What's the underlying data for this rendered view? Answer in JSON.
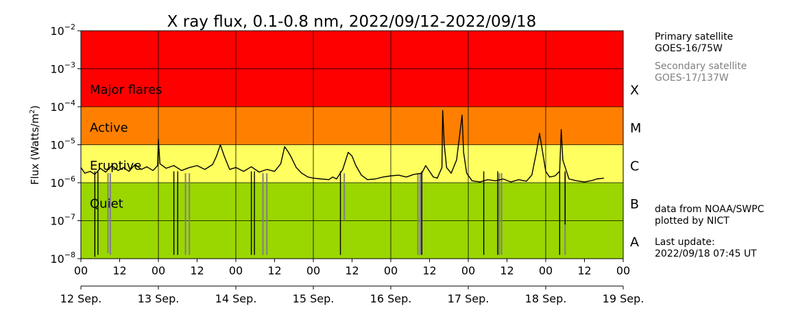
{
  "chart_data": {
    "type": "line",
    "title": "X ray flux, 0.1-0.8 nm, 2022/09/12-2022/09/18",
    "ylabel": "Flux (Watts/m²)",
    "ylabel_main": "Flux (Watts/m",
    "ylabel_sup": "2",
    "ylabel_end": ")",
    "yscale": "log",
    "xlim_days": [
      0,
      7
    ],
    "ylim_exp": [
      -8,
      -2
    ],
    "y_ticks": [
      {
        "exp": -2,
        "base": "10",
        "sup": "−2"
      },
      {
        "exp": -3,
        "base": "10",
        "sup": "−3"
      },
      {
        "exp": -4,
        "base": "10",
        "sup": "−4"
      },
      {
        "exp": -5,
        "base": "10",
        "sup": "−5"
      },
      {
        "exp": -6,
        "base": "10",
        "sup": "−6"
      },
      {
        "exp": -7,
        "base": "10",
        "sup": "−7"
      },
      {
        "exp": -8,
        "base": "10",
        "sup": "−8"
      }
    ],
    "x_hour_ticks": [
      "00",
      "12",
      "00",
      "12",
      "00",
      "12",
      "00",
      "12",
      "00",
      "12",
      "00",
      "12",
      "00",
      "12",
      "00"
    ],
    "x_day_ticks": [
      "12 Sep.",
      "13 Sep.",
      "14 Sep.",
      "15 Sep.",
      "16 Sep.",
      "17 Sep.",
      "18 Sep.",
      "19 Sep."
    ],
    "bands": [
      {
        "from_exp": -4,
        "to_exp": -2,
        "color": "#ff0000",
        "label": "Major flares",
        "class": "X"
      },
      {
        "from_exp": -5,
        "to_exp": -4,
        "color": "#ff8000",
        "label": "Active",
        "class": "M"
      },
      {
        "from_exp": -6,
        "to_exp": -5,
        "color": "#ffff60",
        "label": "Eruptive",
        "class": "C"
      },
      {
        "from_exp": -8,
        "to_exp": -6,
        "color": "#9ad600",
        "label": "Quiet",
        "class": "B"
      }
    ],
    "class_labels": [
      "X",
      "M",
      "C",
      "B",
      "A"
    ],
    "grid": true,
    "series": [
      {
        "name": "GOES-16/75W",
        "color": "#000000",
        "points": [
          [
            0.0,
            -5.6
          ],
          [
            0.05,
            -5.75
          ],
          [
            0.12,
            -5.7
          ],
          [
            0.18,
            -5.78
          ],
          [
            0.25,
            -5.62
          ],
          [
            0.32,
            -5.72
          ],
          [
            0.4,
            -5.55
          ],
          [
            0.48,
            -5.68
          ],
          [
            0.55,
            -5.6
          ],
          [
            0.62,
            -5.7
          ],
          [
            0.7,
            -5.52
          ],
          [
            0.78,
            -5.65
          ],
          [
            0.85,
            -5.58
          ],
          [
            0.93,
            -5.68
          ],
          [
            0.99,
            -5.55
          ],
          [
            1.0,
            -4.85
          ],
          [
            1.02,
            -5.5
          ],
          [
            1.1,
            -5.62
          ],
          [
            1.2,
            -5.55
          ],
          [
            1.3,
            -5.68
          ],
          [
            1.4,
            -5.6
          ],
          [
            1.5,
            -5.55
          ],
          [
            1.6,
            -5.65
          ],
          [
            1.7,
            -5.52
          ],
          [
            1.75,
            -5.3
          ],
          [
            1.8,
            -5.0
          ],
          [
            1.85,
            -5.3
          ],
          [
            1.92,
            -5.65
          ],
          [
            2.0,
            -5.6
          ],
          [
            2.1,
            -5.7
          ],
          [
            2.2,
            -5.58
          ],
          [
            2.3,
            -5.72
          ],
          [
            2.4,
            -5.65
          ],
          [
            2.5,
            -5.7
          ],
          [
            2.58,
            -5.5
          ],
          [
            2.63,
            -5.05
          ],
          [
            2.68,
            -5.2
          ],
          [
            2.72,
            -5.35
          ],
          [
            2.78,
            -5.6
          ],
          [
            2.85,
            -5.75
          ],
          [
            2.93,
            -5.85
          ],
          [
            3.0,
            -5.88
          ],
          [
            3.1,
            -5.9
          ],
          [
            3.2,
            -5.92
          ],
          [
            3.25,
            -5.85
          ],
          [
            3.3,
            -5.9
          ],
          [
            3.38,
            -5.65
          ],
          [
            3.45,
            -5.2
          ],
          [
            3.5,
            -5.3
          ],
          [
            3.55,
            -5.55
          ],
          [
            3.62,
            -5.8
          ],
          [
            3.7,
            -5.92
          ],
          [
            3.8,
            -5.9
          ],
          [
            3.9,
            -5.85
          ],
          [
            4.0,
            -5.82
          ],
          [
            4.1,
            -5.8
          ],
          [
            4.2,
            -5.85
          ],
          [
            4.3,
            -5.78
          ],
          [
            4.4,
            -5.75
          ],
          [
            4.45,
            -5.55
          ],
          [
            4.5,
            -5.7
          ],
          [
            4.55,
            -5.85
          ],
          [
            4.6,
            -5.88
          ],
          [
            4.66,
            -5.6
          ],
          [
            4.67,
            -4.1
          ],
          [
            4.69,
            -5.0
          ],
          [
            4.72,
            -5.6
          ],
          [
            4.78,
            -5.75
          ],
          [
            4.85,
            -5.4
          ],
          [
            4.92,
            -4.22
          ],
          [
            4.94,
            -5.2
          ],
          [
            4.98,
            -5.75
          ],
          [
            5.05,
            -5.95
          ],
          [
            5.15,
            -5.98
          ],
          [
            5.25,
            -5.92
          ],
          [
            5.35,
            -5.95
          ],
          [
            5.45,
            -5.9
          ],
          [
            5.55,
            -5.98
          ],
          [
            5.65,
            -5.92
          ],
          [
            5.75,
            -5.96
          ],
          [
            5.82,
            -5.8
          ],
          [
            5.88,
            -5.2
          ],
          [
            5.92,
            -4.7
          ],
          [
            5.96,
            -5.2
          ],
          [
            6.0,
            -5.7
          ],
          [
            6.05,
            -5.85
          ],
          [
            6.12,
            -5.82
          ],
          [
            6.18,
            -5.7
          ],
          [
            6.2,
            -4.6
          ],
          [
            6.22,
            -5.4
          ],
          [
            6.3,
            -5.9
          ],
          [
            6.4,
            -5.95
          ],
          [
            6.5,
            -5.98
          ],
          [
            6.6,
            -5.94
          ],
          [
            6.66,
            -5.9
          ],
          [
            6.75,
            -5.88
          ]
        ]
      },
      {
        "name": "GOES-17/137W",
        "color": "#808080",
        "points": []
      }
    ],
    "dropouts_primary": [
      [
        0.18,
        -7.95
      ],
      [
        0.22,
        -7.9
      ],
      [
        1.2,
        -7.9
      ],
      [
        1.25,
        -7.9
      ],
      [
        2.2,
        -7.9
      ],
      [
        2.24,
        -7.9
      ],
      [
        3.35,
        -7.9
      ],
      [
        4.4,
        -7.9
      ],
      [
        5.2,
        -7.9
      ],
      [
        5.38,
        -7.9
      ],
      [
        6.18,
        -7.9
      ],
      [
        6.25,
        -7.1
      ]
    ],
    "dropouts_secondary": [
      [
        0.35,
        -7.85
      ],
      [
        0.38,
        -7.9
      ],
      [
        1.35,
        -7.9
      ],
      [
        1.4,
        -7.9
      ],
      [
        2.35,
        -7.9
      ],
      [
        2.4,
        -7.9
      ],
      [
        3.4,
        -7.0
      ],
      [
        4.35,
        -7.9
      ],
      [
        4.38,
        -7.9
      ],
      [
        4.4,
        -7.9
      ],
      [
        5.4,
        -7.9
      ],
      [
        5.43,
        -7.9
      ],
      [
        6.25,
        -7.9
      ]
    ]
  },
  "legend": {
    "primary_heading": "Primary satellite",
    "primary_name": "GOES-16/75W",
    "secondary_heading": "Secondary satellite",
    "secondary_name": "GOES-17/137W"
  },
  "credits": {
    "line1": "data from NOAA/SWPC",
    "line2": "plotted by NICT",
    "update_label": "Last update:",
    "update_time": "2022/09/18 07:45 UT"
  },
  "colors": {
    "primary": "#000000",
    "secondary": "#808080",
    "major": "#ff0000",
    "active": "#ff8000",
    "eruptive": "#ffff60",
    "quiet": "#9ad600"
  }
}
